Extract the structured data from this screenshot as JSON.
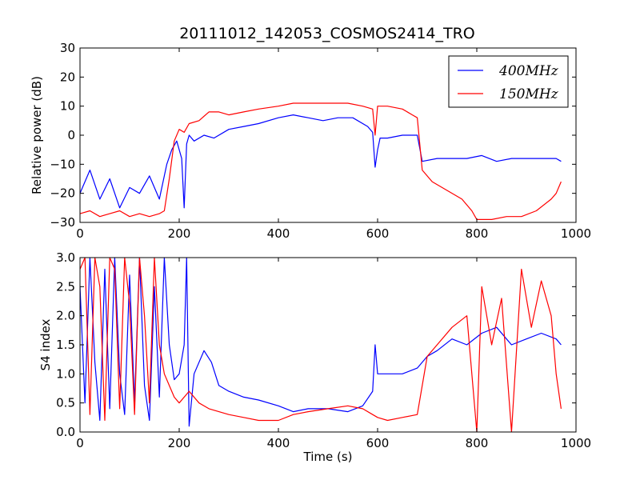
{
  "chart_data": {
    "title": "20111012_142053_COSMOS2414_TRO",
    "xlabel": "Time (s)",
    "x_ticks": [
      "0",
      "200",
      "400",
      "600",
      "800",
      "1000"
    ],
    "xlim": [
      0,
      1000
    ],
    "legend": {
      "placement": "top-right",
      "entries": [
        {
          "label": "400MHz",
          "color": "#0000ff"
        },
        {
          "label": "150MHz",
          "color": "#ff0000"
        }
      ]
    },
    "panels": [
      {
        "type": "line",
        "ylabel": "Relative power (dB)",
        "ylim": [
          -30,
          30
        ],
        "y_ticks": [
          "30",
          "20",
          "10",
          "0",
          "−10",
          "−20",
          "−30"
        ],
        "series": [
          {
            "name": "400MHz",
            "color": "#0000ff",
            "x": [
              0,
              20,
              40,
              60,
              80,
              100,
              120,
              140,
              160,
              175,
              185,
              195,
              205,
              210,
              215,
              220,
              230,
              250,
              270,
              300,
              330,
              360,
              400,
              430,
              460,
              490,
              520,
              550,
              580,
              590,
              595,
              600,
              605,
              620,
              650,
              680,
              690,
              720,
              750,
              780,
              810,
              840,
              870,
              900,
              930,
              960,
              970
            ],
            "y": [
              -20,
              -12,
              -22,
              -15,
              -25,
              -18,
              -20,
              -14,
              -22,
              -10,
              -5,
              -2,
              -8,
              -25,
              -3,
              0,
              -2,
              0,
              -1,
              2,
              3,
              4,
              6,
              7,
              6,
              5,
              6,
              6,
              3,
              1,
              -11,
              -5,
              -1,
              -1,
              0,
              0,
              -9,
              -8,
              -8,
              -8,
              -7,
              -9,
              -8,
              -8,
              -8,
              -8,
              -9
            ]
          },
          {
            "name": "150MHz",
            "color": "#ff0000",
            "x": [
              0,
              20,
              40,
              60,
              80,
              100,
              120,
              140,
              160,
              170,
              180,
              190,
              200,
              210,
              220,
              240,
              260,
              280,
              300,
              330,
              360,
              400,
              430,
              460,
              500,
              540,
              570,
              590,
              595,
              600,
              620,
              650,
              670,
              680,
              690,
              710,
              740,
              770,
              790,
              800,
              830,
              860,
              890,
              920,
              950,
              960,
              970
            ],
            "y": [
              -27,
              -26,
              -28,
              -27,
              -26,
              -28,
              -27,
              -28,
              -27,
              -26,
              -15,
              -2,
              2,
              1,
              4,
              5,
              8,
              8,
              7,
              8,
              9,
              10,
              11,
              11,
              11,
              11,
              10,
              9,
              0,
              10,
              10,
              9,
              7,
              6,
              -12,
              -16,
              -19,
              -22,
              -26,
              -29,
              -29,
              -28,
              -28,
              -26,
              -22,
              -20,
              -16
            ]
          }
        ]
      },
      {
        "type": "line",
        "ylabel": "S4 index",
        "ylim": [
          0,
          3
        ],
        "y_ticks": [
          "3.0",
          "2.5",
          "2.0",
          "1.5",
          "1.0",
          "0.5",
          "0.0"
        ],
        "series": [
          {
            "name": "400MHz",
            "color": "#0000ff",
            "x": [
              0,
              10,
              20,
              30,
              40,
              50,
              60,
              70,
              80,
              90,
              100,
              110,
              120,
              130,
              140,
              150,
              160,
              170,
              180,
              190,
              200,
              210,
              215,
              220,
              230,
              250,
              265,
              280,
              300,
              330,
              360,
              400,
              430,
              460,
              500,
              540,
              570,
              590,
              595,
              600,
              620,
              650,
              680,
              700,
              720,
              750,
              780,
              810,
              840,
              870,
              900,
              930,
              960,
              970
            ],
            "y": [
              2.5,
              0.5,
              3.0,
              1.2,
              0.2,
              2.8,
              0.4,
              3.0,
              1.0,
              0.3,
              2.7,
              0.5,
              3.0,
              0.8,
              0.2,
              2.5,
              0.6,
              3.0,
              1.5,
              0.9,
              1.0,
              1.5,
              3.0,
              0.1,
              1.0,
              1.4,
              1.2,
              0.8,
              0.7,
              0.6,
              0.55,
              0.45,
              0.35,
              0.4,
              0.4,
              0.35,
              0.45,
              0.7,
              1.5,
              1.0,
              1.0,
              1.0,
              1.1,
              1.3,
              1.4,
              1.6,
              1.5,
              1.7,
              1.8,
              1.5,
              1.6,
              1.7,
              1.6,
              1.5
            ]
          },
          {
            "name": "150MHz",
            "color": "#ff0000",
            "x": [
              0,
              10,
              20,
              30,
              40,
              50,
              60,
              70,
              80,
              90,
              100,
              110,
              120,
              130,
              140,
              150,
              160,
              170,
              180,
              190,
              200,
              220,
              240,
              260,
              280,
              300,
              330,
              360,
              400,
              430,
              460,
              500,
              540,
              570,
              590,
              600,
              620,
              650,
              680,
              700,
              720,
              750,
              780,
              800,
              810,
              830,
              850,
              870,
              890,
              910,
              930,
              950,
              960,
              970
            ],
            "y": [
              2.8,
              3.0,
              0.3,
              3.0,
              2.5,
              0.2,
              3.0,
              2.8,
              0.4,
              3.0,
              2.2,
              0.3,
              3.0,
              2.0,
              0.5,
              3.0,
              1.5,
              1.0,
              0.8,
              0.6,
              0.5,
              0.7,
              0.5,
              0.4,
              0.35,
              0.3,
              0.25,
              0.2,
              0.2,
              0.3,
              0.35,
              0.4,
              0.45,
              0.4,
              0.3,
              0.25,
              0.2,
              0.25,
              0.3,
              1.3,
              1.5,
              1.8,
              2.0,
              0.0,
              2.5,
              1.5,
              2.3,
              0.0,
              2.8,
              1.8,
              2.6,
              2.0,
              1.0,
              0.4
            ]
          }
        ]
      }
    ]
  }
}
